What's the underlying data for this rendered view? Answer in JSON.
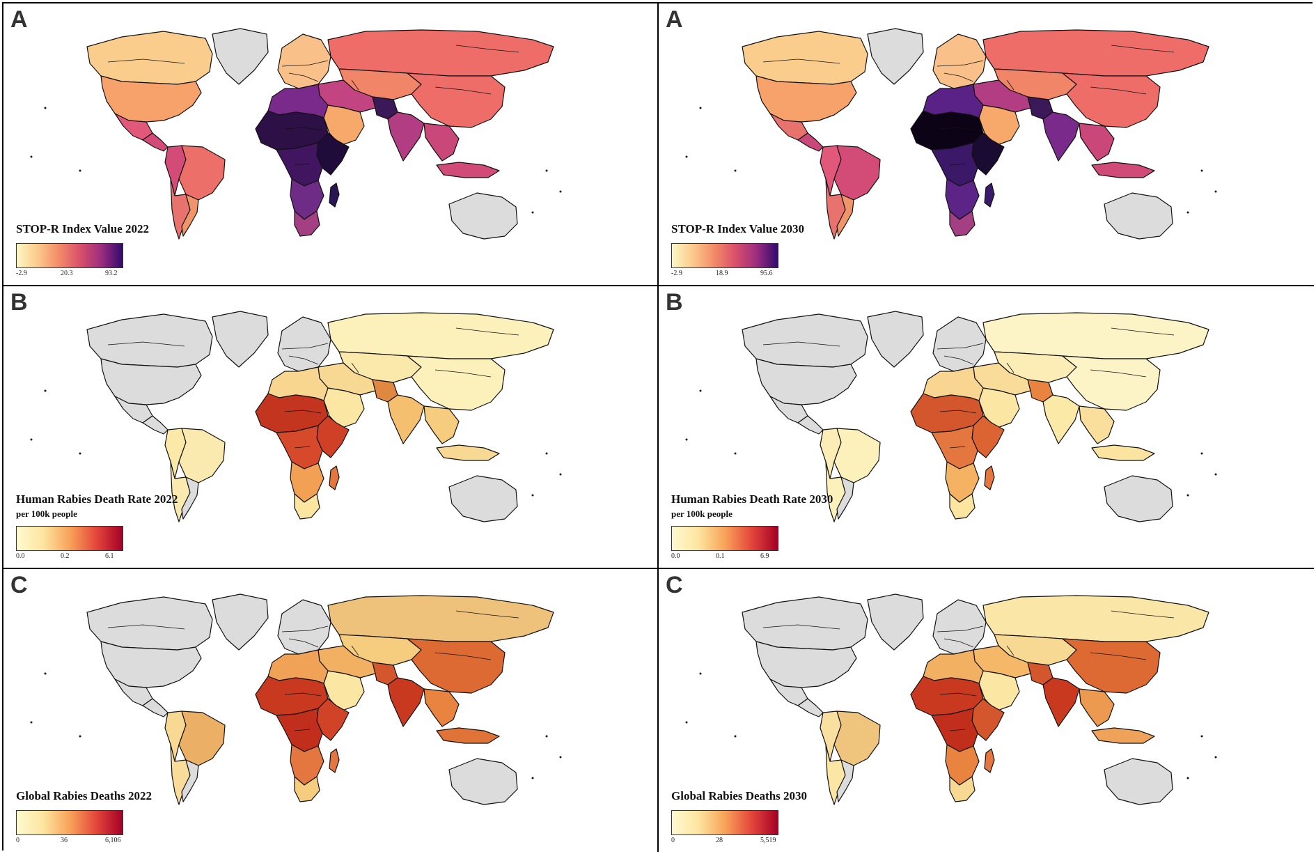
{
  "panels": [
    {
      "letter": "A",
      "legend_title": "STOP-R Index Value 2022",
      "legend_subtitle": "",
      "ticks": {
        "min": "-2.9",
        "mid": "20.3",
        "max": "93.2"
      },
      "scale": "magma",
      "colors": {
        "north_america": "#fbcd8c",
        "usa": "#f6a26a",
        "mexico": "#e2587a",
        "central_america": "#d34b79",
        "south_america": "#e8726d",
        "brazil": "#ec6f6a",
        "southern_cone": "#f0956a",
        "andes": "#d34c78",
        "greenland": "#dcdcdc",
        "europe": "#f9c08a",
        "russia": "#ef6d69",
        "middle_east": "#c24480",
        "arabia": "#f7a96b",
        "north_africa": "#7a2a8b",
        "sahel": "#2d1046",
        "central_africa": "#421560",
        "east_africa": "#1f0c3a",
        "southern_africa": "#6e2c87",
        "south_africa": "#a53f84",
        "madagascar": "#2a1555",
        "india": "#b33d82",
        "pakistan": "#3b1858",
        "china": "#ee6d69",
        "central_asia": "#f08568",
        "southeast_asia": "#c94779",
        "indonesia": "#d14b78",
        "australia": "#dcdcdc"
      }
    },
    {
      "letter": "A",
      "legend_title": "STOP-R Index Value 2030",
      "legend_subtitle": "",
      "ticks": {
        "min": "-2.9",
        "mid": "18.9",
        "max": "95.6"
      },
      "scale": "magma",
      "colors": {
        "north_america": "#fbcd8c",
        "usa": "#f6a26a",
        "mexico": "#e8726d",
        "central_america": "#c94779",
        "south_america": "#e8726d",
        "brazil": "#d34c78",
        "southern_cone": "#f0956a",
        "andes": "#e2587a",
        "greenland": "#dcdcdc",
        "europe": "#f9c08a",
        "russia": "#ef6d69",
        "middle_east": "#b33d82",
        "arabia": "#f7a96b",
        "north_africa": "#5a2286",
        "sahel": "#0c0416",
        "central_africa": "#3b1868",
        "east_africa": "#1a0b33",
        "southern_africa": "#5b2486",
        "south_africa": "#a53f84",
        "madagascar": "#3a1a6a",
        "india": "#7a2a8b",
        "pakistan": "#3b1858",
        "china": "#ee6d69",
        "central_asia": "#f08568",
        "southeast_asia": "#c94779",
        "indonesia": "#d14b78",
        "australia": "#dcdcdc"
      }
    },
    {
      "letter": "B",
      "legend_title": "Human Rabies Death Rate 2022",
      "legend_subtitle": "per 100k people",
      "ticks": {
        "min": "0.0",
        "mid": "0.2",
        "max": "6.1"
      },
      "scale": "ylorrd",
      "colors": {
        "north_america": "#dcdcdc",
        "usa": "#dcdcdc",
        "mexico": "#dcdcdc",
        "central_america": "#dcdcdc",
        "south_america": "#faeab0",
        "brazil": "#faeab0",
        "southern_cone": "#dcdcdc",
        "andes": "#fbe9a8",
        "greenland": "#dcdcdc",
        "europe": "#dcdcdc",
        "russia": "#fcf0bb",
        "middle_east": "#f8d993",
        "arabia": "#fbe6a3",
        "north_africa": "#f9d690",
        "sahel": "#c4351f",
        "central_africa": "#d64a2b",
        "east_africa": "#cf4027",
        "southern_africa": "#f2a053",
        "south_africa": "#fbe5a0",
        "madagascar": "#e4773f",
        "india": "#f4c070",
        "pakistan": "#e08742",
        "china": "#fcf0bb",
        "central_asia": "#fae9ab",
        "southeast_asia": "#f6cc7e",
        "indonesia": "#f8d993",
        "australia": "#dcdcdc"
      }
    },
    {
      "letter": "B",
      "legend_title": "Human Rabies Death Rate 2030",
      "legend_subtitle": "per 100k people",
      "ticks": {
        "min": "0.0",
        "mid": "0.1",
        "max": "6.9"
      },
      "scale": "ylorrd",
      "colors": {
        "north_america": "#dcdcdc",
        "usa": "#dcdcdc",
        "mexico": "#dcdcdc",
        "central_america": "#dcdcdc",
        "south_america": "#fcf0bb",
        "brazil": "#fcf0bb",
        "southern_cone": "#dcdcdc",
        "andes": "#fbedb5",
        "greenland": "#dcdcdc",
        "europe": "#dcdcdc",
        "russia": "#fcf3c6",
        "middle_east": "#f9dc99",
        "arabia": "#fbe6a3",
        "north_africa": "#f8d590",
        "sahel": "#d4562d",
        "central_africa": "#e4773f",
        "east_africa": "#dc6433",
        "southern_africa": "#f4b262",
        "south_africa": "#fbe5a0",
        "madagascar": "#e4773f",
        "india": "#fbe9a8",
        "pakistan": "#e8843f",
        "china": "#fcf3c6",
        "central_asia": "#fbedb5",
        "southeast_asia": "#f9de9c",
        "indonesia": "#fae4a0",
        "australia": "#dcdcdc"
      }
    },
    {
      "letter": "C",
      "legend_title": "Global Rabies Deaths 2022",
      "legend_subtitle": "",
      "ticks": {
        "min": "0",
        "mid": "36",
        "max": "6,106"
      },
      "scale": "ylorrd",
      "colors": {
        "north_america": "#dcdcdc",
        "usa": "#dcdcdc",
        "mexico": "#dcdcdc",
        "central_america": "#dcdcdc",
        "south_america": "#f9dc99",
        "brazil": "#ebb066",
        "southern_cone": "#dcdcdc",
        "andes": "#f8d993",
        "greenland": "#dcdcdc",
        "europe": "#dcdcdc",
        "russia": "#eec27a",
        "middle_east": "#f2b062",
        "arabia": "#fbe6a3",
        "north_africa": "#f0a257",
        "sahel": "#c8391f",
        "central_africa": "#c12f1c",
        "east_africa": "#d04327",
        "southern_africa": "#e4773f",
        "south_africa": "#f6cc7e",
        "madagascar": "#e4773f",
        "india": "#c8391f",
        "pakistan": "#d4562d",
        "china": "#dd6a33",
        "central_asia": "#f6cc7e",
        "southeast_asia": "#e8843f",
        "indonesia": "#e07438",
        "australia": "#dcdcdc"
      }
    },
    {
      "letter": "C",
      "legend_title": "Global Rabies Deaths 2030",
      "legend_subtitle": "",
      "ticks": {
        "min": "0",
        "mid": "28",
        "max": "5,519"
      },
      "scale": "ylorrd",
      "colors": {
        "north_america": "#dcdcdc",
        "usa": "#dcdcdc",
        "mexico": "#dcdcdc",
        "central_america": "#dcdcdc",
        "south_america": "#fbe6a3",
        "brazil": "#efc47c",
        "southern_cone": "#dcdcdc",
        "andes": "#fae0a0",
        "greenland": "#dcdcdc",
        "europe": "#dcdcdc",
        "russia": "#fae6a6",
        "middle_east": "#f4b868",
        "arabia": "#fbe6a3",
        "north_africa": "#f2b062",
        "sahel": "#c8391f",
        "central_africa": "#c12f1c",
        "east_africa": "#d4562d",
        "southern_africa": "#e8843f",
        "south_africa": "#f8d993",
        "madagascar": "#e4773f",
        "india": "#c8391f",
        "pakistan": "#d4562d",
        "china": "#dd6a33",
        "central_asia": "#f8d993",
        "southeast_asia": "#eb9a50",
        "indonesia": "#eea25a",
        "australia": "#dcdcdc"
      }
    }
  ]
}
